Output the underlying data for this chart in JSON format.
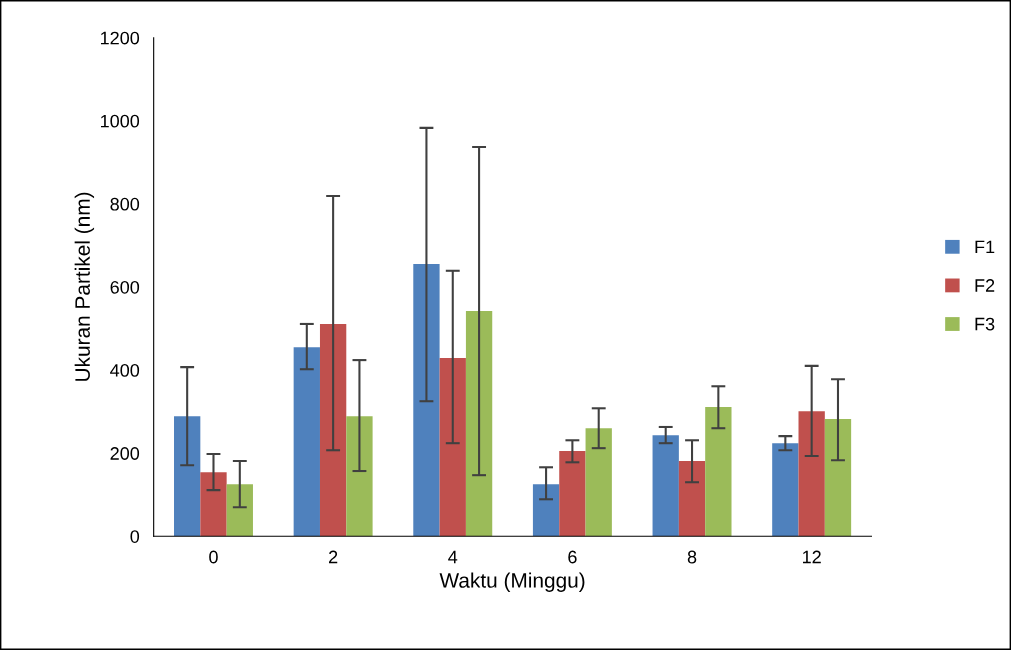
{
  "chart_data": {
    "type": "bar",
    "xlabel": "Waktu (Minggu)",
    "ylabel": "Ukuran Partikel (nm)",
    "categories": [
      "0",
      "2",
      "4",
      "6",
      "8",
      "12"
    ],
    "series": [
      {
        "name": "F1",
        "color": "#4f81bd",
        "values": [
          289,
          455,
          655,
          125,
          243,
          224
        ],
        "errors": [
          [
            171,
            407
          ],
          [
            402,
            511
          ],
          [
            325,
            983
          ],
          [
            89,
            166
          ],
          [
            224,
            263
          ],
          [
            207,
            241
          ]
        ]
      },
      {
        "name": "F2",
        "color": "#c0504d",
        "values": [
          154,
          511,
          429,
          205,
          181,
          301
        ],
        "errors": [
          [
            111,
            198
          ],
          [
            207,
            819
          ],
          [
            224,
            639
          ],
          [
            178,
            231
          ],
          [
            130,
            231
          ],
          [
            193,
            410
          ]
        ]
      },
      {
        "name": "F3",
        "color": "#9bbb59",
        "values": [
          125,
          289,
          542,
          260,
          311,
          282
        ],
        "errors": [
          [
            70,
            181
          ],
          [
            157,
            424
          ],
          [
            147,
            937
          ],
          [
            212,
            308
          ],
          [
            260,
            361
          ],
          [
            183,
            378
          ]
        ]
      }
    ],
    "ylim": [
      0,
      1200
    ],
    "yticks": [
      0,
      200,
      400,
      600,
      800,
      1000,
      1200
    ],
    "grid": false,
    "legend": "right"
  }
}
